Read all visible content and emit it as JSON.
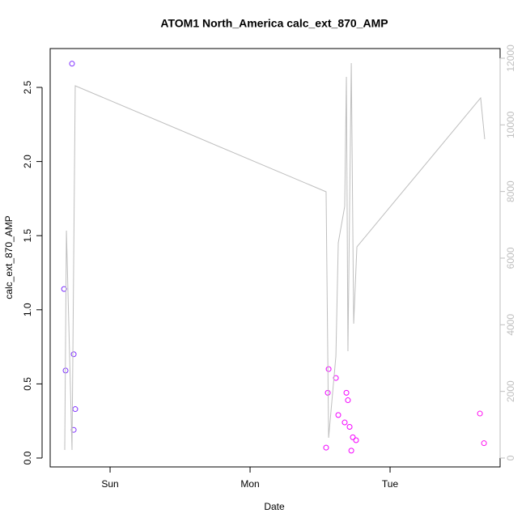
{
  "chart_data": {
    "type": "scatter",
    "title": "ATOM1 North_America calc_ext_870_AMP",
    "xlabel": "Date",
    "ylabel": "calc_ext_870_AMP",
    "xlim": [
      0.572,
      3.786
    ],
    "xticks": [
      {
        "value": 1,
        "label": "Sun"
      },
      {
        "value": 2,
        "label": "Mon"
      },
      {
        "value": 3,
        "label": "Tue"
      }
    ],
    "ylim": [
      -0.06,
      2.762
    ],
    "yticks": [
      {
        "value": 0,
        "label": "0.0"
      },
      0.5,
      {
        "value": 1,
        "label": "1.0"
      },
      1.5,
      {
        "value": 2,
        "label": "2.0"
      },
      2.5
    ],
    "y2lim": [
      -267,
      12290
    ],
    "y2ticks": [
      0,
      2000,
      4000,
      6000,
      8000,
      10000,
      12000
    ],
    "y2color": "#bebebe",
    "series": [
      {
        "type": "scatter",
        "x": [
          0.671,
          0.682,
          0.728,
          0.74,
          0.751,
          0.74,
          2.543,
          2.555,
          2.561,
          2.613,
          2.63,
          2.676,
          2.688,
          2.699,
          2.711,
          2.734,
          2.723,
          2.757,
          3.642,
          3.671
        ],
        "values": [
          1.14,
          0.59,
          2.66,
          0.7,
          0.33,
          0.19,
          0.07,
          0.44,
          0.6,
          0.54,
          0.29,
          0.24,
          0.44,
          0.39,
          0.21,
          0.14,
          0.05,
          0.12,
          0.3,
          0.1
        ],
        "colors": [
          "#7a2cff",
          "#7a2cff",
          "#8030ff",
          "#8030ff",
          "#8030ff",
          "#8030ff",
          "#f000ff",
          "#f000ff",
          "#f000ff",
          "#f200ff",
          "#f200ff",
          "#f400ff",
          "#f400ff",
          "#f400ff",
          "#f400ff",
          "#f600ff",
          "#f600ff",
          "#f600ff",
          "#ff10f0",
          "#ff10f0"
        ]
      },
      {
        "type": "line",
        "axis": "y2",
        "color": "#bebebe",
        "x": [
          0.676,
          0.688,
          0.728,
          0.751,
          2.543,
          2.561,
          2.613,
          2.63,
          2.676,
          2.688,
          2.699,
          2.723,
          2.74,
          2.763,
          3.647,
          3.676
        ],
        "values": [
          243,
          6825,
          243,
          11173,
          7991,
          607,
          3060,
          6461,
          7554,
          11440,
          3206,
          11853,
          4032,
          6339,
          10809,
          9570
        ]
      }
    ]
  }
}
